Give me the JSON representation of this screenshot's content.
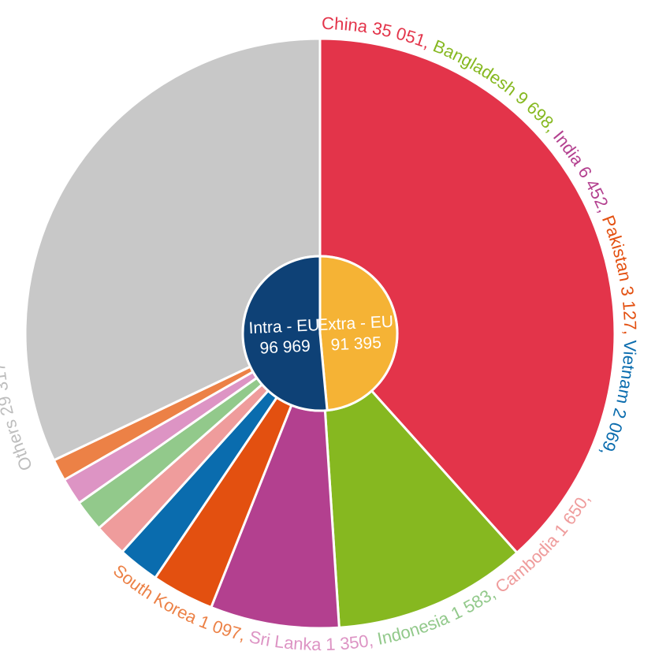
{
  "chart_data": {
    "type": "pie",
    "inner": {
      "slices": [
        {
          "name": "Extra - EU",
          "value": 91395,
          "value_label": "91 395",
          "color": "#F5B335"
        },
        {
          "name": "Intra - EU",
          "value": 96969,
          "value_label": "96 969",
          "color": "#0E4176"
        }
      ]
    },
    "outer": {
      "slices": [
        {
          "name": "China",
          "value": 35051,
          "value_label": "35 051",
          "color": "#E3344A"
        },
        {
          "name": "Bangladesh",
          "value": 9698,
          "value_label": "9 698",
          "color": "#86B820"
        },
        {
          "name": "India",
          "value": 6452,
          "value_label": "6 452",
          "color": "#B3408F"
        },
        {
          "name": "Pakistan",
          "value": 3127,
          "value_label": "3 127",
          "color": "#E35010"
        },
        {
          "name": "Vietnam",
          "value": 2069,
          "value_label": "2 069",
          "color": "#0A6CAE"
        },
        {
          "name": "Cambodia",
          "value": 1650,
          "value_label": "1 650",
          "color": "#EF9C9C"
        },
        {
          "name": "Indonesia",
          "value": 1583,
          "value_label": "1 583",
          "color": "#92C98B"
        },
        {
          "name": "Sri Lanka",
          "value": 1350,
          "value_label": "1 350",
          "color": "#DD94C4"
        },
        {
          "name": "South Korea",
          "value": 1097,
          "value_label": "1 097",
          "color": "#EC8146"
        },
        {
          "name": "Others",
          "value": 29317,
          "value_label": "29 317",
          "color": "#C8C8C8"
        }
      ]
    }
  }
}
